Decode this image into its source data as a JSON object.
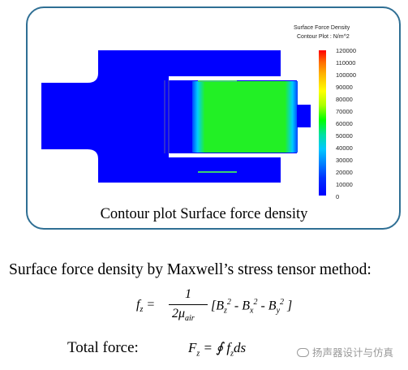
{
  "legend": {
    "title": "Surface Force Density",
    "subtitle": "Contour Plot : N/m^2",
    "ticks": [
      "120000",
      "110000",
      "100000",
      "90000",
      "80000",
      "70000",
      "60000",
      "50000",
      "40000",
      "30000",
      "20000",
      "10000",
      "0"
    ]
  },
  "caption": "Contour plot Surface force density",
  "method_text": "Surface force density by Maxwell’s stress tensor method:",
  "equation": {
    "lhs": "f",
    "lhs_sub": "z",
    "numerator": "1",
    "denominator": "2μ",
    "denominator_sub": "air",
    "rhs": "[B_z^2 - B_x^2 - B_y^2]"
  },
  "total": {
    "label": "Total force:",
    "F": "F",
    "F_sub": "z",
    "rhs": "∮ f",
    "rhs_sub": "z",
    "rhs_tail": "ds"
  },
  "watermark": "扬声器设计与仿真",
  "colors": {
    "border": "#2f6f94",
    "blue": "#0000ff",
    "green": "#22f025"
  }
}
